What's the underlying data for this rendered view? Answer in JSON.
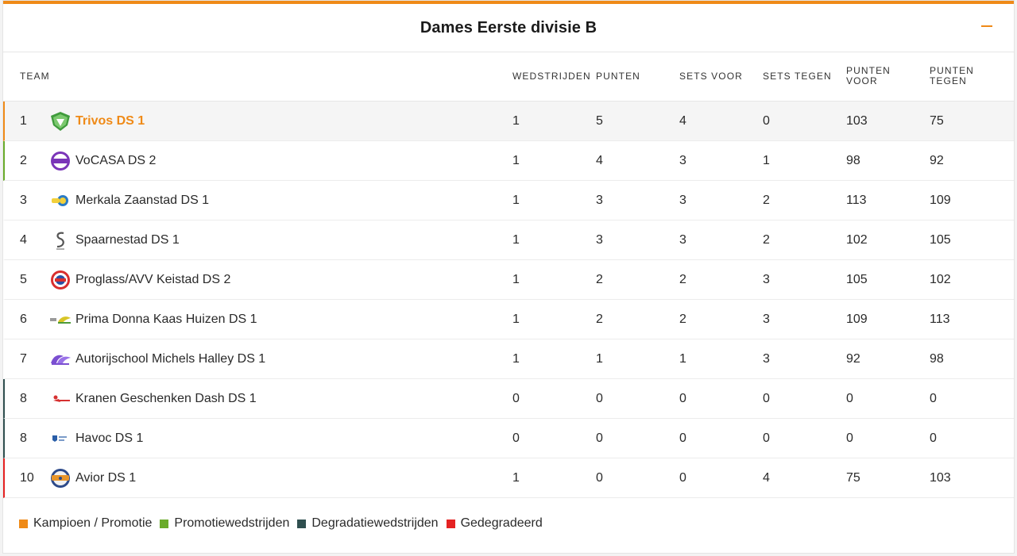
{
  "header": {
    "title": "Dames Eerste divisie B"
  },
  "columns": {
    "team": "TEAM",
    "wedstrijden": "WEDSTRIJDEN",
    "punten": "PUNTEN",
    "sets_voor": "SETS VOOR",
    "sets_tegen": "SETS TEGEN",
    "punten_voor_1": "PUNTEN",
    "punten_voor_2": "VOOR",
    "punten_tegen_1": "PUNTEN",
    "punten_tegen_2": "TEGEN"
  },
  "colors": {
    "kampioen": "#ef8a17",
    "promotie": "#6aab2a",
    "degradatie": "#2f4f4f",
    "gedegradeerd": "#e52222"
  },
  "rows": [
    {
      "pos": "1",
      "team": "Trivos DS 1",
      "wed": "1",
      "pun": "5",
      "sv": "4",
      "st": "0",
      "pv": "103",
      "pt": "75",
      "status": "kampioen",
      "logo": "trivos-logo"
    },
    {
      "pos": "2",
      "team": "VoCASA DS 2",
      "wed": "1",
      "pun": "4",
      "sv": "3",
      "st": "1",
      "pv": "98",
      "pt": "92",
      "status": "promotie",
      "logo": "vocasa-logo"
    },
    {
      "pos": "3",
      "team": "Merkala Zaanstad DS 1",
      "wed": "1",
      "pun": "3",
      "sv": "3",
      "st": "2",
      "pv": "113",
      "pt": "109",
      "status": "none",
      "logo": "merkala-logo"
    },
    {
      "pos": "4",
      "team": "Spaarnestad DS 1",
      "wed": "1",
      "pun": "3",
      "sv": "3",
      "st": "2",
      "pv": "102",
      "pt": "105",
      "status": "none",
      "logo": "spaarnestad-logo"
    },
    {
      "pos": "5",
      "team": "Proglass/AVV Keistad DS 2",
      "wed": "1",
      "pun": "2",
      "sv": "2",
      "st": "3",
      "pv": "105",
      "pt": "102",
      "status": "none",
      "logo": "keistad-logo"
    },
    {
      "pos": "6",
      "team": "Prima Donna Kaas Huizen DS 1",
      "wed": "1",
      "pun": "2",
      "sv": "2",
      "st": "3",
      "pv": "109",
      "pt": "113",
      "status": "none",
      "logo": "huizen-logo"
    },
    {
      "pos": "7",
      "team": "Autorijschool Michels Halley DS 1",
      "wed": "1",
      "pun": "1",
      "sv": "1",
      "st": "3",
      "pv": "92",
      "pt": "98",
      "status": "none",
      "logo": "halley-logo"
    },
    {
      "pos": "8",
      "team": "Kranen Geschenken Dash DS 1",
      "wed": "0",
      "pun": "0",
      "sv": "0",
      "st": "0",
      "pv": "0",
      "pt": "0",
      "status": "degradatie",
      "logo": "dash-logo"
    },
    {
      "pos": "8",
      "team": "Havoc DS 1",
      "wed": "0",
      "pun": "0",
      "sv": "0",
      "st": "0",
      "pv": "0",
      "pt": "0",
      "status": "degradatie",
      "logo": "havoc-logo"
    },
    {
      "pos": "10",
      "team": "Avior DS 1",
      "wed": "1",
      "pun": "0",
      "sv": "0",
      "st": "4",
      "pv": "75",
      "pt": "103",
      "status": "gedegradeerd",
      "logo": "avior-logo"
    }
  ],
  "legend": [
    {
      "label": "Kampioen / Promotie",
      "color": "#ef8a17"
    },
    {
      "label": "Promotiewedstrijden",
      "color": "#6aab2a"
    },
    {
      "label": "Degradatiewedstrijden",
      "color": "#2f4f4f"
    },
    {
      "label": "Gedegradeerd",
      "color": "#e52222"
    }
  ]
}
